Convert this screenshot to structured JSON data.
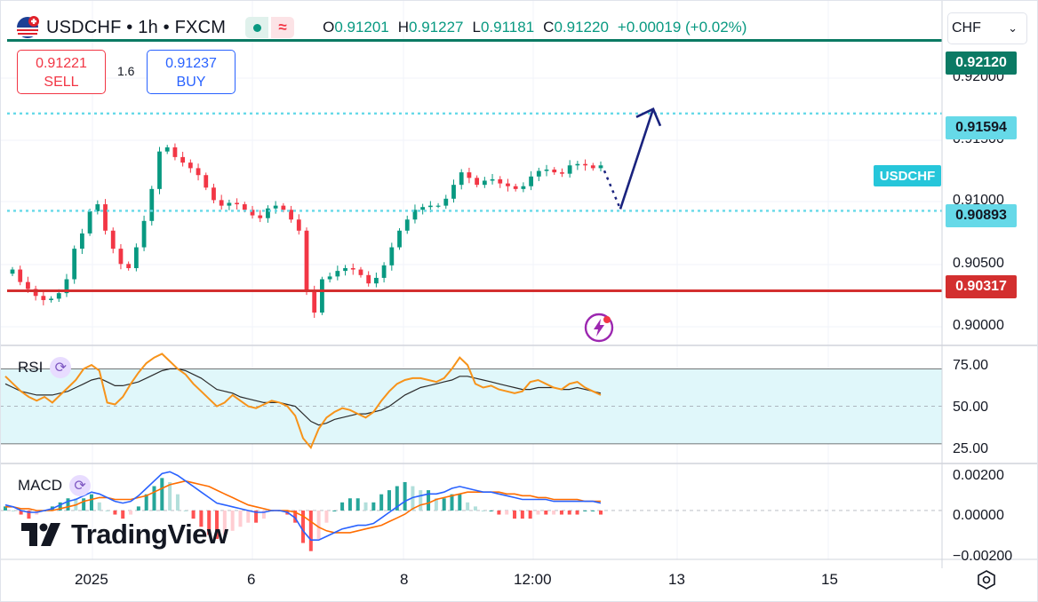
{
  "header": {
    "symbol_title": "USDCHF • 1h • FXCM",
    "ohlc": [
      {
        "k": "O",
        "v": "0.91201"
      },
      {
        "k": "H",
        "v": "0.91227"
      },
      {
        "k": "L",
        "v": "0.91181"
      },
      {
        "k": "C",
        "v": "0.91220"
      }
    ],
    "change": "+0.00019 (+0.02%)",
    "flag_icon": "us-ch-flag-icon",
    "status_icons": [
      "market-open-dot-icon",
      "wave-icon"
    ]
  },
  "trade": {
    "sell_price": "0.91221",
    "sell_label": "SELL",
    "spread": "1.6",
    "buy_price": "0.91237",
    "buy_label": "BUY"
  },
  "currency_select": {
    "value": "CHF",
    "icon": "chevron-down-icon"
  },
  "price_axis": {
    "ticks": [
      "0.92000",
      "0.91500",
      "0.91000",
      "0.90500",
      "0.90000"
    ],
    "badges": [
      {
        "text": "0.92120",
        "color": "#0b7a64"
      },
      {
        "text": "0.91594",
        "color": "#66d9e8"
      },
      {
        "text": "0.90893",
        "color": "#66d9e8"
      },
      {
        "text": "0.90317",
        "color": "#d32f2f"
      }
    ],
    "symbol_badge": "USDCHF"
  },
  "rsi": {
    "label": "RSI",
    "ticks": [
      "75.00",
      "50.00",
      "25.00"
    ]
  },
  "macd": {
    "label": "MACD",
    "ticks": [
      "0.00200",
      "0.00000",
      "−0.00200"
    ]
  },
  "time_axis": {
    "labels": [
      "2025",
      "6",
      "8",
      "12:00",
      "13",
      "15"
    ]
  },
  "brand": {
    "name": "TradingView",
    "logo_icon": "tradingview-logo-icon"
  },
  "colors": {
    "up": "#089981",
    "down": "#f23645",
    "rsi": "#f7931a",
    "macd": "#2962ff",
    "signal": "#ff6d00",
    "level_green": "#0b7a64",
    "level_cyan": "#66d9e8",
    "level_red": "#d32f2f",
    "arrow": "#1a237e"
  },
  "chart_data": [
    {
      "type": "candlestick",
      "title": "USDCHF • 1h • FXCM",
      "ylim": [
        0.8993,
        0.9236
      ],
      "x_labels": [
        "2025",
        "6",
        "8",
        "12:00",
        "13",
        "15"
      ],
      "horizontal_levels": [
        0.9212,
        0.91594,
        0.90893,
        0.90317
      ],
      "close_path": [
        0.9047,
        0.9038,
        0.9033,
        0.9028,
        0.9025,
        0.9026,
        0.903,
        0.904,
        0.9062,
        0.9073,
        0.9089,
        0.9094,
        0.9075,
        0.9062,
        0.9051,
        0.9048,
        0.9063,
        0.9082,
        0.9105,
        0.9132,
        0.9135,
        0.9128,
        0.9124,
        0.912,
        0.9115,
        0.9106,
        0.9097,
        0.9093,
        0.9095,
        0.9094,
        0.909,
        0.9086,
        0.9084,
        0.9091,
        0.9093,
        0.909,
        0.9083,
        0.9075,
        0.9032,
        0.9016,
        0.904,
        0.9042,
        0.9046,
        0.9048,
        0.9047,
        0.9043,
        0.9037,
        0.9041,
        0.905,
        0.9063,
        0.9075,
        0.9083,
        0.909,
        0.9092,
        0.9093,
        0.9093,
        0.9098,
        0.9108,
        0.9117,
        0.9113,
        0.9108,
        0.9111,
        0.9112,
        0.9109,
        0.9107,
        0.9105,
        0.9107,
        0.9114,
        0.9118,
        0.9119,
        0.9117,
        0.9116,
        0.9122,
        0.9123,
        0.9122,
        0.912,
        0.9122
      ]
    },
    {
      "type": "line",
      "title": "RSI",
      "ylim": [
        20,
        82
      ],
      "bands": [
        30,
        70
      ],
      "midline": 50,
      "series": [
        {
          "values": [
            66,
            62,
            58,
            55,
            53,
            55,
            52,
            56,
            60,
            64,
            70,
            72,
            69,
            52,
            51,
            55,
            62,
            68,
            73,
            76,
            78,
            74,
            70,
            67,
            62,
            58,
            54,
            50,
            52,
            56,
            53,
            50,
            49,
            51,
            53,
            52,
            50,
            45,
            33,
            28,
            38,
            44,
            47,
            49,
            48,
            46,
            44,
            47,
            53,
            58,
            62,
            64,
            65,
            65,
            64,
            63,
            65,
            70,
            76,
            72,
            62,
            60,
            61,
            59,
            58,
            57,
            58,
            63,
            64,
            62,
            60,
            59,
            62,
            63,
            60,
            58,
            56
          ]
        },
        {
          "values": [
            62,
            60,
            58,
            57,
            56,
            56,
            56,
            57,
            58,
            60,
            62,
            64,
            65,
            63,
            61,
            61,
            62,
            63,
            65,
            67,
            69,
            70,
            70,
            69,
            67,
            65,
            62,
            59,
            58,
            57,
            55,
            54,
            53,
            52,
            52,
            52,
            51,
            50,
            46,
            42,
            40,
            41,
            43,
            44,
            45,
            46,
            46,
            47,
            48,
            50,
            53,
            56,
            58,
            60,
            61,
            62,
            63,
            64,
            66,
            66,
            65,
            64,
            63,
            62,
            61,
            60,
            59,
            59,
            60,
            60,
            60,
            59,
            59,
            60,
            59,
            58,
            57
          ]
        }
      ]
    },
    {
      "type": "line",
      "title": "MACD",
      "ylim": [
        -0.0026,
        0.0025
      ],
      "series": [
        {
          "values": [
            0.0003,
            0.0002,
            0.0,
            -0.0001,
            -0.0001,
            0.0,
            0.0001,
            0.0003,
            0.0005,
            0.0006,
            0.0008,
            0.001,
            0.0009,
            0.0007,
            0.0005,
            0.0004,
            0.0005,
            0.0008,
            0.0012,
            0.0016,
            0.002,
            0.0021,
            0.0019,
            0.0016,
            0.0013,
            0.001,
            0.0007,
            0.0004,
            0.0003,
            0.0002,
            0.0001,
            0.0,
            -0.0001,
            -0.0001,
            0.0,
            0.0,
            -0.0001,
            -0.0004,
            -0.0011,
            -0.0016,
            -0.0016,
            -0.0014,
            -0.0012,
            -0.001,
            -0.0009,
            -0.0008,
            -0.0008,
            -0.0007,
            -0.0004,
            -0.0001,
            0.0002,
            0.0005,
            0.0007,
            0.0008,
            0.0009,
            0.0009,
            0.001,
            0.0012,
            0.0013,
            0.0012,
            0.0011,
            0.001,
            0.001,
            0.0009,
            0.0008,
            0.0007,
            0.0006,
            0.0006,
            0.0006,
            0.0006,
            0.0005,
            0.0005,
            0.0005,
            0.0005,
            0.0005,
            0.0005,
            0.0004
          ]
        },
        {
          "values": [
            0.0002,
            0.0002,
            0.0001,
            0.0001,
            0.0,
            0.0,
            0.0,
            0.0001,
            0.0002,
            0.0003,
            0.0005,
            0.0006,
            0.0007,
            0.0007,
            0.0006,
            0.0006,
            0.0006,
            0.0007,
            0.0008,
            0.001,
            0.0012,
            0.0014,
            0.0015,
            0.0016,
            0.0015,
            0.0014,
            0.0013,
            0.0011,
            0.0009,
            0.0007,
            0.0005,
            0.0003,
            0.0002,
            0.0001,
            0.0,
            0.0,
            0.0,
            -0.0001,
            -0.0003,
            -0.0006,
            -0.0009,
            -0.0011,
            -0.0012,
            -0.0012,
            -0.0012,
            -0.0011,
            -0.001,
            -0.0009,
            -0.0008,
            -0.0006,
            -0.0004,
            -0.0002,
            0.0001,
            0.0003,
            0.0004,
            0.0006,
            0.0007,
            0.0008,
            0.0009,
            0.001,
            0.001,
            0.001,
            0.001,
            0.001,
            0.0009,
            0.0009,
            0.0008,
            0.0008,
            0.0007,
            0.0007,
            0.0006,
            0.0006,
            0.0006,
            0.0006,
            0.0005,
            0.0005,
            0.0005
          ]
        }
      ]
    }
  ]
}
